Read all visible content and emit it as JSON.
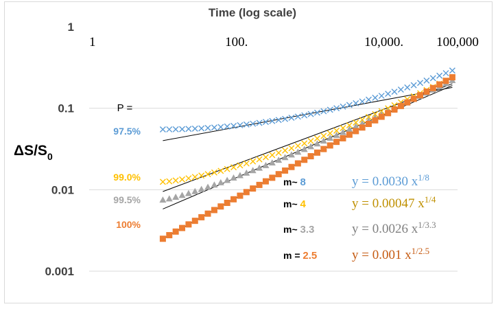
{
  "chart_data": {
    "type": "scatter",
    "xaxis": {
      "label": "Time (log scale)",
      "scale": "log",
      "range": [
        1,
        100000
      ],
      "tick_values": [
        1,
        100,
        10000,
        100000
      ],
      "tick_labels": [
        "1",
        "100.",
        "10,000.",
        "100,000"
      ]
    },
    "yaxis": {
      "label_main": "ΔS/S",
      "label_sub": "0",
      "scale": "log",
      "range": [
        0.001,
        1
      ],
      "tick_values": [
        1,
        0.1,
        0.01,
        0.001
      ],
      "tick_labels": [
        "1",
        "0.1",
        "0.01",
        "0.001"
      ]
    },
    "p_header": "P =",
    "series": [
      {
        "name": "97.5%",
        "p_label": "97.5%",
        "marker": "x",
        "color": "#5b9bd5",
        "coef": 0.003,
        "exponent": 0.125,
        "x_start": 10,
        "x_end": 85000,
        "y_start": 0.055,
        "y_end": 0.29,
        "curve_exp": 2.0,
        "m_prefix": "m~",
        "m_value": "8",
        "eq_prefix": "y = 0.0030 x",
        "eq_sup": "1/8",
        "fit_color": "#5b9bd5",
        "fit_y_start": 0.04,
        "fit_y_end": 0.18
      },
      {
        "name": "99.0%",
        "p_label": "99.0%",
        "marker": "x",
        "color": "#ffc000",
        "coef": 0.00047,
        "exponent": 0.25,
        "x_start": 10,
        "x_end": 85000,
        "y_start": 0.0125,
        "y_end": 0.24,
        "curve_exp": 1.4,
        "m_prefix": "m~",
        "m_value": "4",
        "eq_prefix": "y = 0.00047 x",
        "eq_sup": "1/4",
        "fit_color": "#bf9000",
        "fit_y_start": 0.0095,
        "fit_y_end": 0.2
      },
      {
        "name": "99.5%",
        "p_label": "99.5%",
        "marker": "triangle",
        "color": "#a5a5a5",
        "coef": 0.0026,
        "exponent": 0.303,
        "x_start": 10,
        "x_end": 85000,
        "y_start": 0.0075,
        "y_end": 0.22,
        "curve_exp": 1.2,
        "m_prefix": "m~",
        "m_value": "3.3",
        "eq_prefix": "y = 0.0026 x",
        "eq_sup": "1/3.3",
        "fit_color": "#808080",
        "fit_y_start": 0.0058,
        "fit_y_end": 0.19
      },
      {
        "name": "100%",
        "p_label": "100%",
        "marker": "square",
        "color": "#ed7d31",
        "coef": 0.001,
        "exponent": 0.4,
        "x_start": 10,
        "x_end": 85000,
        "y_start": 0.0025,
        "y_end": 0.24,
        "curve_exp": 1.0,
        "m_prefix": "m =",
        "m_value": "2.5",
        "eq_prefix": "y = 0.001 x",
        "eq_sup": "1/2.5",
        "fit_color": "#c55a11",
        "fit_y_start": 0.0025,
        "fit_y_end": 0.24
      }
    ]
  }
}
